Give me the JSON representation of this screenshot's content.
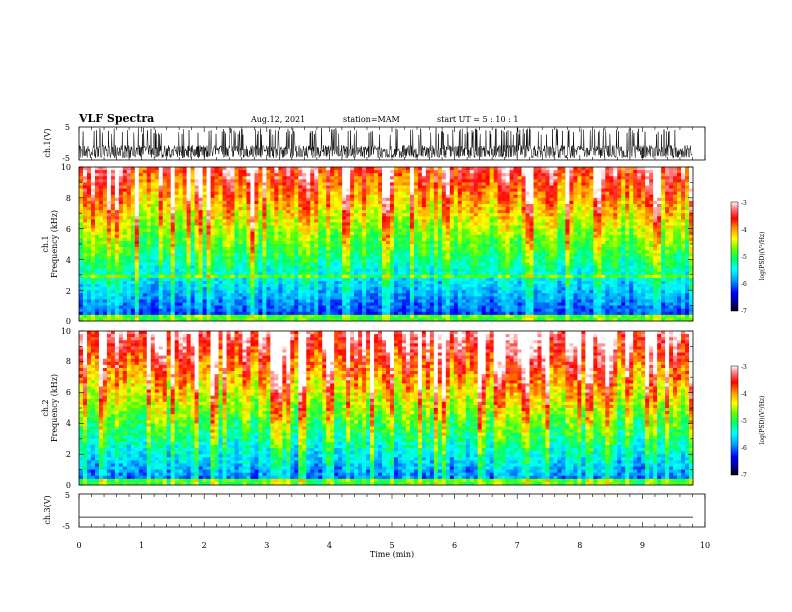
{
  "header": {
    "title": "VLF Spectra",
    "date": "Aug.12, 2021",
    "station": "station=MAM",
    "start": "start  UT =  5 : 10 : 1"
  },
  "colors": {
    "waveform": "#000000",
    "axes": "#000000",
    "colormap": [
      "#000000",
      "#00008b",
      "#0000ff",
      "#00a0ff",
      "#00ffff",
      "#00ff66",
      "#66ff00",
      "#ffff00",
      "#ffa000",
      "#ff0000",
      "#ff8080",
      "#ffffff"
    ]
  },
  "chart_data": [
    {
      "type": "line",
      "panel": "ch1-waveform",
      "ylabel": "ch.1(V)",
      "ylim": [
        -5,
        5
      ],
      "yticks": [
        -5,
        5
      ],
      "xlim": [
        0,
        10
      ],
      "description_values": {
        "typical_range": [
          -3,
          2.8
        ]
      }
    },
    {
      "type": "heatmap",
      "panel": "ch1-spectrogram",
      "ylabel_top": "ch.1",
      "ylabel": "Frequency (kHz)",
      "ylim": [
        0,
        10
      ],
      "yticks": [
        0,
        2,
        4,
        6,
        8,
        10
      ],
      "xlim": [
        0,
        10
      ],
      "colorbar": {
        "label": "log(PSD)(V²/Hz)",
        "range": [
          -7,
          -3
        ],
        "ticks": [
          -3,
          -4,
          -5,
          -6,
          -7
        ]
      }
    },
    {
      "type": "heatmap",
      "panel": "ch2-spectrogram",
      "ylabel_top": "ch.2",
      "ylabel": "Frequency (kHz)",
      "ylim": [
        0,
        10
      ],
      "yticks": [
        0,
        2,
        4,
        6,
        8,
        10
      ],
      "xlim": [
        0,
        10
      ],
      "colorbar": {
        "label": "log(PSD)(V²/Hz)",
        "range": [
          -7,
          -3
        ],
        "ticks": [
          -3,
          -4,
          -5,
          -6,
          -7
        ]
      }
    },
    {
      "type": "line",
      "panel": "ch3-waveform",
      "ylabel": "ch.3(V)",
      "ylim": [
        -5,
        5
      ],
      "yticks": [
        -5,
        5
      ],
      "xlim": [
        0,
        10
      ],
      "flat_value": -2
    }
  ],
  "xaxis": {
    "label": "Time (min)",
    "ticks": [
      "0",
      "1",
      "2",
      "3",
      "4",
      "5",
      "6",
      "7",
      "8",
      "9",
      "10"
    ],
    "range": [
      0,
      10
    ]
  },
  "labels": {
    "ch1_v": "ch.1(V)",
    "ch1": "ch.1",
    "freq": "Frequency (kHz)",
    "ch2": "ch.2",
    "ch3_v": "ch.3(V)",
    "cb_label": "log(PSD)(V²/Hz)",
    "y5": "5",
    "ym5": "-5",
    "f0": "0",
    "f2": "2",
    "f4": "4",
    "f6": "6",
    "f8": "8",
    "f10": "10",
    "cb3": "-3",
    "cb4": "-4",
    "cb5": "-5",
    "cb6": "-6",
    "cb7": "-7"
  }
}
